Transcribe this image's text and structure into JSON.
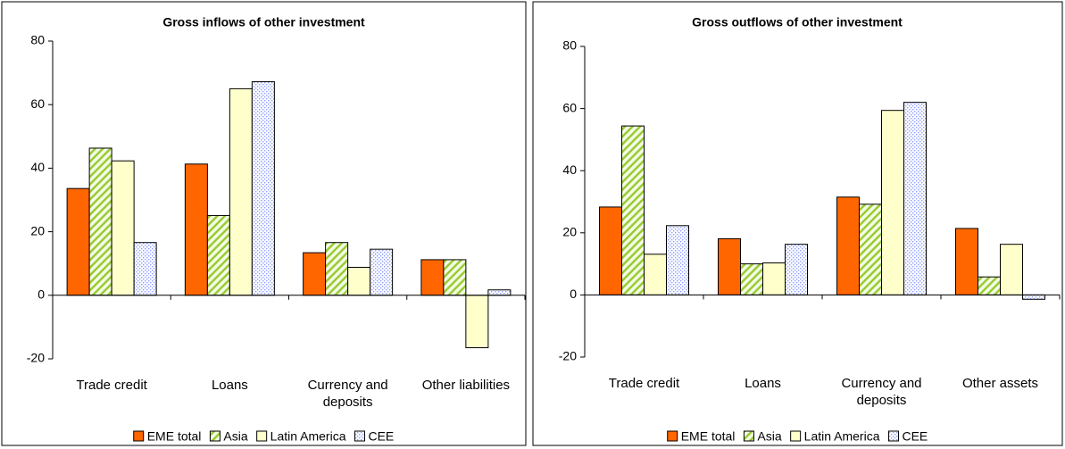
{
  "chart_data": [
    {
      "type": "bar",
      "title": "Gross inflows of other investment",
      "categories": [
        "Trade credit",
        "Loans",
        "Currency and deposits",
        "Other liabilities"
      ],
      "series": [
        {
          "name": "EME total",
          "color": "#ff6600",
          "hatch": "none",
          "values": [
            33.6,
            41.3,
            13.4,
            11.2
          ]
        },
        {
          "name": "Asia",
          "color": "#99cc33",
          "hatch": "diagonal",
          "values": [
            46.3,
            25.1,
            16.6,
            11.2
          ]
        },
        {
          "name": "Latin America",
          "color": "#ffffcc",
          "hatch": "none",
          "values": [
            42.3,
            65,
            8.8,
            -16.5
          ]
        },
        {
          "name": "CEE",
          "color": "#8c9cff",
          "hatch": "dots",
          "values": [
            16.6,
            67.2,
            14.5,
            1.7
          ]
        }
      ],
      "ylim": [
        -20,
        80
      ],
      "yticks": [
        -20,
        0,
        20,
        40,
        60,
        80
      ],
      "grid": false,
      "legend": "bottom"
    },
    {
      "type": "bar",
      "title": "Gross outflows of other investment",
      "categories": [
        "Trade credit",
        "Loans",
        "Currency and deposits",
        "Other assets"
      ],
      "series": [
        {
          "name": "EME total",
          "color": "#ff6600",
          "hatch": "none",
          "values": [
            28.3,
            18.1,
            31.5,
            21.4
          ]
        },
        {
          "name": "Asia",
          "color": "#99cc33",
          "hatch": "diagonal",
          "values": [
            54.4,
            10,
            29.2,
            5.8
          ]
        },
        {
          "name": "Latin America",
          "color": "#ffffcc",
          "hatch": "none",
          "values": [
            13.1,
            10.3,
            59.4,
            16.3
          ]
        },
        {
          "name": "CEE",
          "color": "#8c9cff",
          "hatch": "dots",
          "values": [
            22.3,
            16.3,
            62,
            -1.4
          ]
        }
      ],
      "ylim": [
        -20,
        80
      ],
      "yticks": [
        -20,
        0,
        20,
        40,
        60,
        80
      ],
      "grid": false,
      "legend": "bottom"
    }
  ]
}
